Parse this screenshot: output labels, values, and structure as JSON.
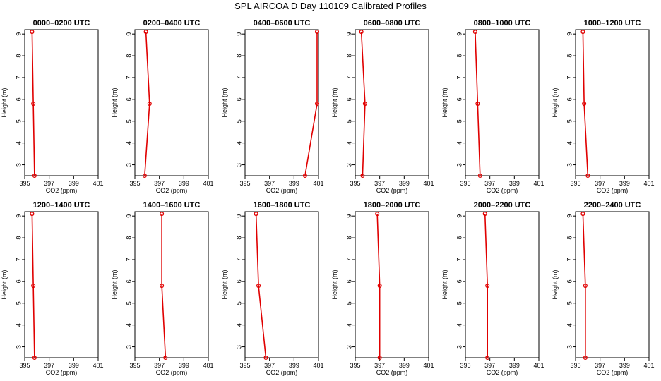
{
  "title": "SPL AIRCOA D  Day 110109  Calibrated Profiles",
  "colors": {
    "series": "#e00000",
    "axes": "#000000"
  },
  "chart_data": [
    {
      "type": "line",
      "title": "0000–0200 UTC",
      "xlabel": "CO2 (ppm)",
      "ylabel": "Height (m)",
      "xlim": [
        395,
        401
      ],
      "ylim": [
        2.5,
        9.2
      ],
      "xticks": [
        "395",
        "397",
        "399",
        "401"
      ],
      "yticks": [
        "3",
        "4",
        "5",
        "6",
        "7",
        "8",
        "9"
      ],
      "points": [
        {
          "x": 395.6,
          "y": 9.1
        },
        {
          "x": 395.7,
          "y": 5.8
        },
        {
          "x": 395.8,
          "y": 2.5
        }
      ]
    },
    {
      "type": "line",
      "title": "0200–0400 UTC",
      "xlabel": "CO2 (ppm)",
      "ylabel": "Height (m)",
      "xlim": [
        395,
        401
      ],
      "ylim": [
        2.5,
        9.2
      ],
      "xticks": [
        "395",
        "397",
        "399",
        "401"
      ],
      "yticks": [
        "3",
        "4",
        "5",
        "6",
        "7",
        "8",
        "9"
      ],
      "points": [
        {
          "x": 395.9,
          "y": 9.1
        },
        {
          "x": 396.2,
          "y": 5.8
        },
        {
          "x": 395.8,
          "y": 2.5
        }
      ]
    },
    {
      "type": "line",
      "title": "0400–0600 UTC",
      "xlabel": "CO2 (ppm)",
      "ylabel": "Height (m)",
      "xlim": [
        395,
        401
      ],
      "ylim": [
        2.5,
        9.2
      ],
      "xticks": [
        "395",
        "397",
        "399",
        "401"
      ],
      "yticks": [
        "3",
        "4",
        "5",
        "6",
        "7",
        "8",
        "9"
      ],
      "points": [
        {
          "x": 401.2,
          "y": 9.1
        },
        {
          "x": 401.1,
          "y": 5.8
        },
        {
          "x": 399.9,
          "y": 2.5
        }
      ]
    },
    {
      "type": "line",
      "title": "0600–0800 UTC",
      "xlabel": "CO2 (ppm)",
      "ylabel": "Height (m)",
      "xlim": [
        395,
        401
      ],
      "ylim": [
        2.5,
        9.2
      ],
      "xticks": [
        "395",
        "397",
        "399",
        "401"
      ],
      "yticks": [
        "3",
        "4",
        "5",
        "6",
        "7",
        "8",
        "9"
      ],
      "points": [
        {
          "x": 395.5,
          "y": 9.1
        },
        {
          "x": 395.8,
          "y": 5.8
        },
        {
          "x": 395.6,
          "y": 2.5
        }
      ]
    },
    {
      "type": "line",
      "title": "0800–1000 UTC",
      "xlabel": "CO2 (ppm)",
      "ylabel": "Height (m)",
      "xlim": [
        395,
        401
      ],
      "ylim": [
        2.5,
        9.2
      ],
      "xticks": [
        "395",
        "397",
        "399",
        "401"
      ],
      "yticks": [
        "3",
        "4",
        "5",
        "6",
        "7",
        "8",
        "9"
      ],
      "points": [
        {
          "x": 395.8,
          "y": 9.1
        },
        {
          "x": 396.0,
          "y": 5.8
        },
        {
          "x": 396.2,
          "y": 2.5
        }
      ]
    },
    {
      "type": "line",
      "title": "1000–1200 UTC",
      "xlabel": "CO2 (ppm)",
      "ylabel": "Height (m)",
      "xlim": [
        395,
        401
      ],
      "ylim": [
        2.5,
        9.2
      ],
      "xticks": [
        "395",
        "397",
        "399",
        "401"
      ],
      "yticks": [
        "3",
        "4",
        "5",
        "6",
        "7",
        "8",
        "9"
      ],
      "points": [
        {
          "x": 395.6,
          "y": 9.1
        },
        {
          "x": 395.7,
          "y": 5.8
        },
        {
          "x": 396.0,
          "y": 2.5
        }
      ]
    },
    {
      "type": "line",
      "title": "1200–1400 UTC",
      "xlabel": "CO2 (ppm)",
      "ylabel": "Height (m)",
      "xlim": [
        395,
        401
      ],
      "ylim": [
        2.5,
        9.2
      ],
      "xticks": [
        "395",
        "397",
        "399",
        "401"
      ],
      "yticks": [
        "3",
        "4",
        "5",
        "6",
        "7",
        "8",
        "9"
      ],
      "points": [
        {
          "x": 395.6,
          "y": 9.1
        },
        {
          "x": 395.7,
          "y": 5.8
        },
        {
          "x": 395.8,
          "y": 2.5
        }
      ]
    },
    {
      "type": "line",
      "title": "1400–1600 UTC",
      "xlabel": "CO2 (ppm)",
      "ylabel": "Height (m)",
      "xlim": [
        395,
        401
      ],
      "ylim": [
        2.5,
        9.2
      ],
      "xticks": [
        "395",
        "397",
        "399",
        "401"
      ],
      "yticks": [
        "3",
        "4",
        "5",
        "6",
        "7",
        "8",
        "9"
      ],
      "points": [
        {
          "x": 397.2,
          "y": 9.1
        },
        {
          "x": 397.2,
          "y": 5.8
        },
        {
          "x": 397.5,
          "y": 2.5
        }
      ]
    },
    {
      "type": "line",
      "title": "1600–1800 UTC",
      "xlabel": "CO2 (ppm)",
      "ylabel": "Height (m)",
      "xlim": [
        395,
        401
      ],
      "ylim": [
        2.5,
        9.2
      ],
      "xticks": [
        "395",
        "397",
        "399",
        "401"
      ],
      "yticks": [
        "3",
        "4",
        "5",
        "6",
        "7",
        "8",
        "9"
      ],
      "points": [
        {
          "x": 395.9,
          "y": 9.1
        },
        {
          "x": 396.1,
          "y": 5.8
        },
        {
          "x": 396.7,
          "y": 2.5
        }
      ]
    },
    {
      "type": "line",
      "title": "1800–2000 UTC",
      "xlabel": "CO2 (ppm)",
      "ylabel": "Height (m)",
      "xlim": [
        395,
        401
      ],
      "ylim": [
        2.5,
        9.2
      ],
      "xticks": [
        "395",
        "397",
        "399",
        "401"
      ],
      "yticks": [
        "3",
        "4",
        "5",
        "6",
        "7",
        "8",
        "9"
      ],
      "points": [
        {
          "x": 396.8,
          "y": 9.1
        },
        {
          "x": 397.0,
          "y": 5.8
        },
        {
          "x": 397.0,
          "y": 2.5
        }
      ]
    },
    {
      "type": "line",
      "title": "2000–2200 UTC",
      "xlabel": "CO2 (ppm)",
      "ylabel": "Height (m)",
      "xlim": [
        395,
        401
      ],
      "ylim": [
        2.5,
        9.2
      ],
      "xticks": [
        "395",
        "397",
        "399",
        "401"
      ],
      "yticks": [
        "3",
        "4",
        "5",
        "6",
        "7",
        "8",
        "9"
      ],
      "points": [
        {
          "x": 396.6,
          "y": 9.1
        },
        {
          "x": 396.8,
          "y": 5.8
        },
        {
          "x": 396.8,
          "y": 2.5
        }
      ]
    },
    {
      "type": "line",
      "title": "2200–2400 UTC",
      "xlabel": "CO2 (ppm)",
      "ylabel": "Height (m)",
      "xlim": [
        395,
        401
      ],
      "ylim": [
        2.5,
        9.2
      ],
      "xticks": [
        "395",
        "397",
        "399",
        "401"
      ],
      "yticks": [
        "3",
        "4",
        "5",
        "6",
        "7",
        "8",
        "9"
      ],
      "points": [
        {
          "x": 395.6,
          "y": 9.1
        },
        {
          "x": 395.8,
          "y": 5.8
        },
        {
          "x": 395.8,
          "y": 2.5
        }
      ]
    }
  ]
}
